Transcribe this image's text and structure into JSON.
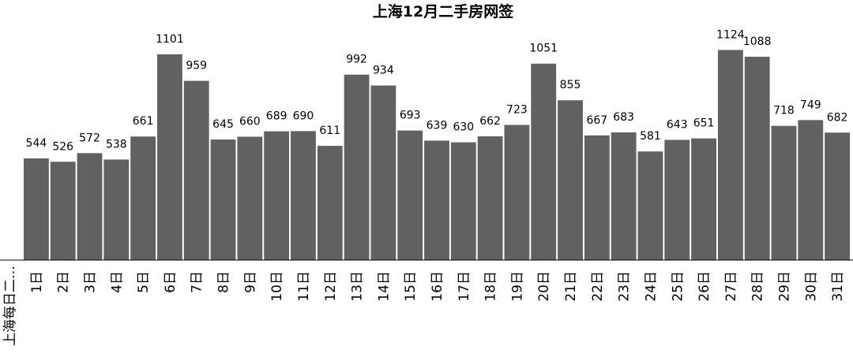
{
  "chart_data": {
    "type": "bar",
    "title": "上海12月二手房网签",
    "row_label": "上海每日二…",
    "categories": [
      "1日",
      "2日",
      "3日",
      "4日",
      "5日",
      "6日",
      "7日",
      "8日",
      "9日",
      "10日",
      "11日",
      "12日",
      "13日",
      "14日",
      "15日",
      "16日",
      "17日",
      "18日",
      "19日",
      "20日",
      "21日",
      "22日",
      "23日",
      "24日",
      "25日",
      "26日",
      "27日",
      "28日",
      "29日",
      "30日",
      "31日"
    ],
    "values": [
      544,
      526,
      572,
      538,
      661,
      1101,
      959,
      645,
      660,
      689,
      690,
      611,
      992,
      934,
      693,
      639,
      630,
      662,
      723,
      1051,
      855,
      667,
      683,
      581,
      643,
      651,
      1124,
      1088,
      718,
      749,
      682
    ],
    "ylim": [
      0,
      1130
    ],
    "colors": {
      "bar": "#616161",
      "axis": "#000000"
    },
    "grid": false
  }
}
